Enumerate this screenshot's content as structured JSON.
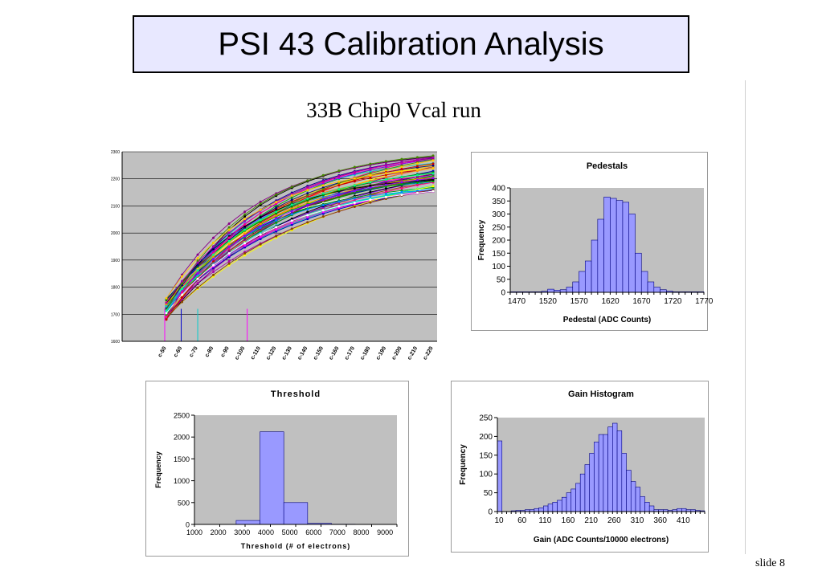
{
  "slide": {
    "title": "PSI 43 Calibration Analysis",
    "subtitle": "33B Chip0  Vcal run",
    "slide_label": "slide 8"
  },
  "colors": {
    "plot_bg": "#c0c0c0",
    "bar_fill": "#9999ff",
    "bar_stroke": "#000080",
    "title_bg": "#e8e8ff"
  },
  "chart_data": [
    {
      "id": "vcal",
      "type": "line",
      "title": "",
      "ylim": [
        1600,
        2300
      ],
      "yticks": [
        "2300",
        "2200",
        "2100",
        "2000",
        "1900",
        "1800",
        "1700",
        "1600"
      ],
      "xticks": [
        "c-50",
        "c-60",
        "c-70",
        "c-80",
        "c-90",
        "c-100",
        "c-110",
        "c-120",
        "c-130",
        "c-140",
        "c-150",
        "c-160",
        "c-170",
        "c-180",
        "c-190",
        "c-200",
        "c-210",
        "c-220"
      ],
      "grid": true,
      "series_count": 60
    },
    {
      "id": "pedestals",
      "type": "bar",
      "title": "Pedestals",
      "xlabel": "Pedestal (ADC Counts)",
      "ylabel": "Frequency",
      "ylim": [
        0,
        400
      ],
      "yticks": [
        "0",
        "50",
        "100",
        "150",
        "200",
        "250",
        "300",
        "350",
        "400"
      ],
      "xticks": [
        "1470",
        "1520",
        "1570",
        "1620",
        "1670",
        "1720",
        "1770"
      ],
      "xrange": [
        1470,
        1780
      ],
      "bin_width": 10,
      "bins_start": [
        1470,
        1480,
        1490,
        1500,
        1510,
        1520,
        1530,
        1540,
        1550,
        1560,
        1570,
        1580,
        1590,
        1600,
        1610,
        1620,
        1630,
        1640,
        1650,
        1660,
        1670,
        1680,
        1690,
        1700,
        1710,
        1720,
        1730,
        1740,
        1750,
        1760,
        1770
      ],
      "values": [
        2,
        2,
        2,
        2,
        2,
        4,
        12,
        8,
        10,
        20,
        40,
        80,
        120,
        200,
        280,
        365,
        360,
        352,
        345,
        300,
        150,
        80,
        40,
        20,
        10,
        5,
        2,
        2,
        2,
        2,
        2
      ]
    },
    {
      "id": "threshold",
      "type": "bar",
      "title": "Threshold",
      "xlabel": "Threshold (# of electrons)",
      "ylabel": "Frequency",
      "ylim": [
        0,
        2500
      ],
      "yticks": [
        "0",
        "500",
        "1000",
        "1500",
        "2000",
        "2500"
      ],
      "xticks": [
        "1000",
        "2000",
        "3000",
        "4000",
        "5000",
        "6000",
        "7000",
        "8000",
        "9000"
      ],
      "xrange": [
        1000,
        9500
      ],
      "bin_width": 1000,
      "bins_start": [
        2750,
        3750,
        4750,
        5750,
        6750
      ],
      "values": [
        90,
        2120,
        500,
        25,
        5
      ]
    },
    {
      "id": "gain",
      "type": "bar",
      "title": "Gain Histogram",
      "xlabel": "Gain (ADC Counts/10000 electrons)",
      "ylabel": "Frequency",
      "ylim": [
        0,
        250
      ],
      "yticks": [
        "0",
        "50",
        "100",
        "150",
        "200",
        "250"
      ],
      "xticks": [
        "10",
        "60",
        "110",
        "160",
        "210",
        "260",
        "310",
        "360",
        "410"
      ],
      "xrange": [
        10,
        460
      ],
      "bin_width": 10,
      "bins_start": [
        10,
        20,
        30,
        40,
        50,
        60,
        70,
        80,
        90,
        100,
        110,
        120,
        130,
        140,
        150,
        160,
        170,
        180,
        190,
        200,
        210,
        220,
        230,
        240,
        250,
        260,
        270,
        280,
        290,
        300,
        310,
        320,
        330,
        340,
        350,
        360,
        370,
        380,
        390,
        400,
        410,
        420,
        430,
        440,
        450
      ],
      "values": [
        188,
        0,
        0,
        2,
        3,
        3,
        5,
        5,
        8,
        10,
        15,
        20,
        25,
        30,
        38,
        50,
        60,
        75,
        100,
        125,
        155,
        185,
        205,
        205,
        225,
        235,
        215,
        155,
        110,
        80,
        65,
        40,
        25,
        15,
        5,
        5,
        5,
        3,
        5,
        8,
        8,
        5,
        5,
        3,
        2
      ]
    }
  ]
}
